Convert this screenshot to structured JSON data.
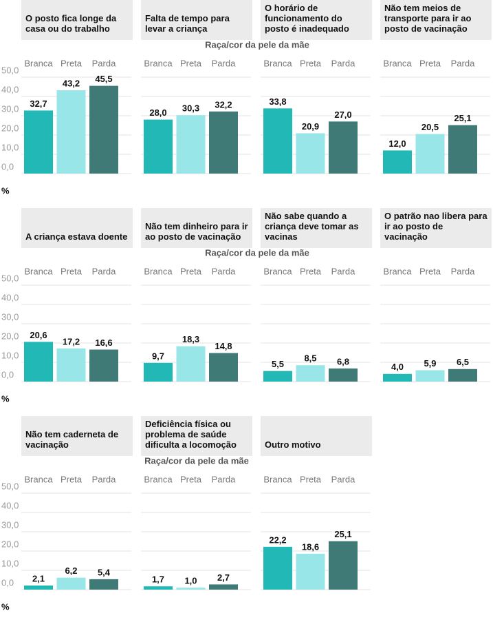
{
  "chart_data": [
    {
      "type": "bar",
      "title": "O posto fica longe da casa ou do trabalho",
      "xlabel": "Raça/cor da pele da mãe",
      "ylabel": "%",
      "categories": [
        "Branca",
        "Preta",
        "Parda"
      ],
      "values": [
        32.7,
        43.2,
        45.5
      ],
      "value_labels": [
        "32,7",
        "43,2",
        "45,5"
      ],
      "colors": [
        "#22b8b5",
        "#99e6e8",
        "#3f7a77"
      ],
      "ylim": [
        0,
        50
      ],
      "yticks": [
        {
          "value": 0,
          "label": "0,0"
        },
        {
          "value": 10,
          "label": "10,0"
        },
        {
          "value": 20,
          "label": "20,0"
        },
        {
          "value": 30,
          "label": "30,0"
        },
        {
          "value": 40,
          "label": "40,0"
        },
        {
          "value": 50,
          "label": "50,0"
        }
      ]
    },
    {
      "type": "bar",
      "title": "Falta de tempo para levar a criança",
      "categories": [
        "Branca",
        "Preta",
        "Parda"
      ],
      "values": [
        28.0,
        30.3,
        32.2
      ],
      "value_labels": [
        "28,0",
        "30,3",
        "32,2"
      ],
      "colors": [
        "#22b8b5",
        "#99e6e8",
        "#3f7a77"
      ],
      "ylim": [
        0,
        50
      ],
      "yticks": [
        0,
        10,
        20,
        30,
        40,
        50
      ]
    },
    {
      "type": "bar",
      "title": "O horário de funcionamento do posto é inadequado",
      "categories": [
        "Branca",
        "Preta",
        "Parda"
      ],
      "values": [
        33.8,
        20.9,
        27.0
      ],
      "value_labels": [
        "33,8",
        "20,9",
        "27,0"
      ],
      "colors": [
        "#22b8b5",
        "#99e6e8",
        "#3f7a77"
      ],
      "ylim": [
        0,
        50
      ],
      "yticks": [
        0,
        10,
        20,
        30,
        40,
        50
      ]
    },
    {
      "type": "bar",
      "title": "Não tem meios de transporte para ir ao posto de vacinação",
      "categories": [
        "Branca",
        "Preta",
        "Parda"
      ],
      "values": [
        12.0,
        20.5,
        25.1
      ],
      "value_labels": [
        "12,0",
        "20,5",
        "25,1"
      ],
      "colors": [
        "#22b8b5",
        "#99e6e8",
        "#3f7a77"
      ],
      "ylim": [
        0,
        50
      ],
      "yticks": [
        0,
        10,
        20,
        30,
        40,
        50
      ]
    },
    {
      "type": "bar",
      "title": "A criança estava doente",
      "xlabel": "Raça/cor da pele da mãe",
      "ylabel": "%",
      "categories": [
        "Branca",
        "Preta",
        "Parda"
      ],
      "values": [
        20.6,
        17.2,
        16.6
      ],
      "value_labels": [
        "20,6",
        "17,2",
        "16,6"
      ],
      "colors": [
        "#22b8b5",
        "#99e6e8",
        "#3f7a77"
      ],
      "ylim": [
        0,
        50
      ],
      "yticks": [
        {
          "value": 0,
          "label": "0,0"
        },
        {
          "value": 10,
          "label": "10,0"
        },
        {
          "value": 20,
          "label": "20,0"
        },
        {
          "value": 30,
          "label": "30,0"
        },
        {
          "value": 40,
          "label": "40,0"
        },
        {
          "value": 50,
          "label": "50,0"
        }
      ]
    },
    {
      "type": "bar",
      "title": "Não tem dinheiro para ir ao posto de vacinação",
      "categories": [
        "Branca",
        "Preta",
        "Parda"
      ],
      "values": [
        9.7,
        18.3,
        14.8
      ],
      "value_labels": [
        "9,7",
        "18,3",
        "14,8"
      ],
      "colors": [
        "#22b8b5",
        "#99e6e8",
        "#3f7a77"
      ],
      "ylim": [
        0,
        50
      ],
      "yticks": [
        0,
        10,
        20,
        30,
        40,
        50
      ]
    },
    {
      "type": "bar",
      "title": "Não sabe quando a criança deve tomar as vacinas",
      "categories": [
        "Branca",
        "Preta",
        "Parda"
      ],
      "values": [
        5.5,
        8.5,
        6.8
      ],
      "value_labels": [
        "5,5",
        "8,5",
        "6,8"
      ],
      "colors": [
        "#22b8b5",
        "#99e6e8",
        "#3f7a77"
      ],
      "ylim": [
        0,
        50
      ],
      "yticks": [
        0,
        10,
        20,
        30,
        40,
        50
      ]
    },
    {
      "type": "bar",
      "title": "O patrão nao libera para ir ao posto de vacinação",
      "categories": [
        "Branca",
        "Preta",
        "Parda"
      ],
      "values": [
        4.0,
        5.9,
        6.5
      ],
      "value_labels": [
        "4,0",
        "5,9",
        "6,5"
      ],
      "colors": [
        "#22b8b5",
        "#99e6e8",
        "#3f7a77"
      ],
      "ylim": [
        0,
        50
      ],
      "yticks": [
        0,
        10,
        20,
        30,
        40,
        50
      ]
    },
    {
      "type": "bar",
      "title": "Não tem caderneta de vacinação",
      "xlabel": "Raça/cor da pele da mãe",
      "ylabel": "%",
      "categories": [
        "Branca",
        "Preta",
        "Parda"
      ],
      "values": [
        2.1,
        6.2,
        5.4
      ],
      "value_labels": [
        "2,1",
        "6,2",
        "5,4"
      ],
      "colors": [
        "#22b8b5",
        "#99e6e8",
        "#3f7a77"
      ],
      "ylim": [
        0,
        50
      ],
      "yticks": [
        {
          "value": 0,
          "label": "0,0"
        },
        {
          "value": 10,
          "label": "10,0"
        },
        {
          "value": 20,
          "label": "20,0"
        },
        {
          "value": 30,
          "label": "30,0"
        },
        {
          "value": 40,
          "label": "40,0"
        },
        {
          "value": 50,
          "label": "50,0"
        }
      ]
    },
    {
      "type": "bar",
      "title": "Deficiência física ou problema de saúde dificulta a locomoção",
      "categories": [
        "Branca",
        "Preta",
        "Parda"
      ],
      "values": [
        1.7,
        1.0,
        2.7
      ],
      "value_labels": [
        "1,7",
        "1,0",
        "2,7"
      ],
      "colors": [
        "#22b8b5",
        "#99e6e8",
        "#3f7a77"
      ],
      "ylim": [
        0,
        50
      ],
      "yticks": [
        0,
        10,
        20,
        30,
        40,
        50
      ]
    },
    {
      "type": "bar",
      "title": "Outro motivo",
      "categories": [
        "Branca",
        "Preta",
        "Parda"
      ],
      "values": [
        22.2,
        18.6,
        25.1
      ],
      "value_labels": [
        "22,2",
        "18,6",
        "25,1"
      ],
      "colors": [
        "#22b8b5",
        "#99e6e8",
        "#3f7a77"
      ],
      "ylim": [
        0,
        50
      ],
      "yticks": [
        0,
        10,
        20,
        30,
        40,
        50
      ]
    }
  ]
}
